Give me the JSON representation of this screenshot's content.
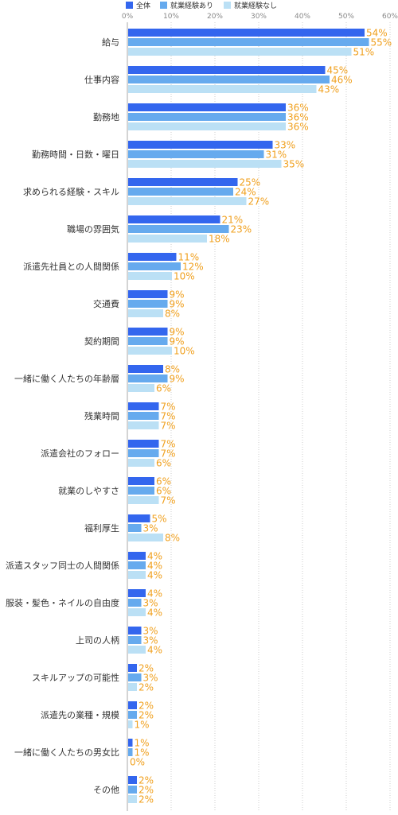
{
  "chart_data": {
    "type": "bar",
    "orientation": "horizontal",
    "xlim": [
      0,
      60
    ],
    "x_ticks": [
      "0%",
      "10%",
      "20%",
      "30%",
      "40%",
      "50%",
      "60%"
    ],
    "grid": true,
    "legend_position": "top",
    "value_suffix": "%",
    "categories": [
      "給与",
      "仕事内容",
      "勤務地",
      "勤務時間・日数・曜日",
      "求められる経験・スキル",
      "職場の雰囲気",
      "派遣先社員との人間関係",
      "交通費",
      "契約期間",
      "一緒に働く人たちの年齢層",
      "残業時間",
      "派遣会社のフォロー",
      "就業のしやすさ",
      "福利厚生",
      "派遣スタッフ同士の人間関係",
      "服装・髪色・ネイルの自由度",
      "上司の人柄",
      "スキルアップの可能性",
      "派遣先の業種・規模",
      "一緒に働く人たちの男女比",
      "その他"
    ],
    "series": [
      {
        "name": "全体",
        "color": "#3366ee",
        "values": [
          54,
          45,
          36,
          33,
          25,
          21,
          11,
          9,
          9,
          8,
          7,
          7,
          6,
          5,
          4,
          4,
          3,
          2,
          2,
          1,
          2
        ]
      },
      {
        "name": "就業経験あり",
        "color": "#66aaee",
        "values": [
          55,
          46,
          36,
          31,
          24,
          23,
          12,
          9,
          9,
          9,
          7,
          7,
          6,
          3,
          4,
          3,
          3,
          3,
          2,
          1,
          2
        ]
      },
      {
        "name": "就業経験なし",
        "color": "#bbe0f5",
        "values": [
          51,
          43,
          36,
          35,
          27,
          18,
          10,
          8,
          10,
          6,
          7,
          6,
          7,
          8,
          4,
          4,
          4,
          2,
          1,
          0,
          2
        ]
      }
    ]
  }
}
